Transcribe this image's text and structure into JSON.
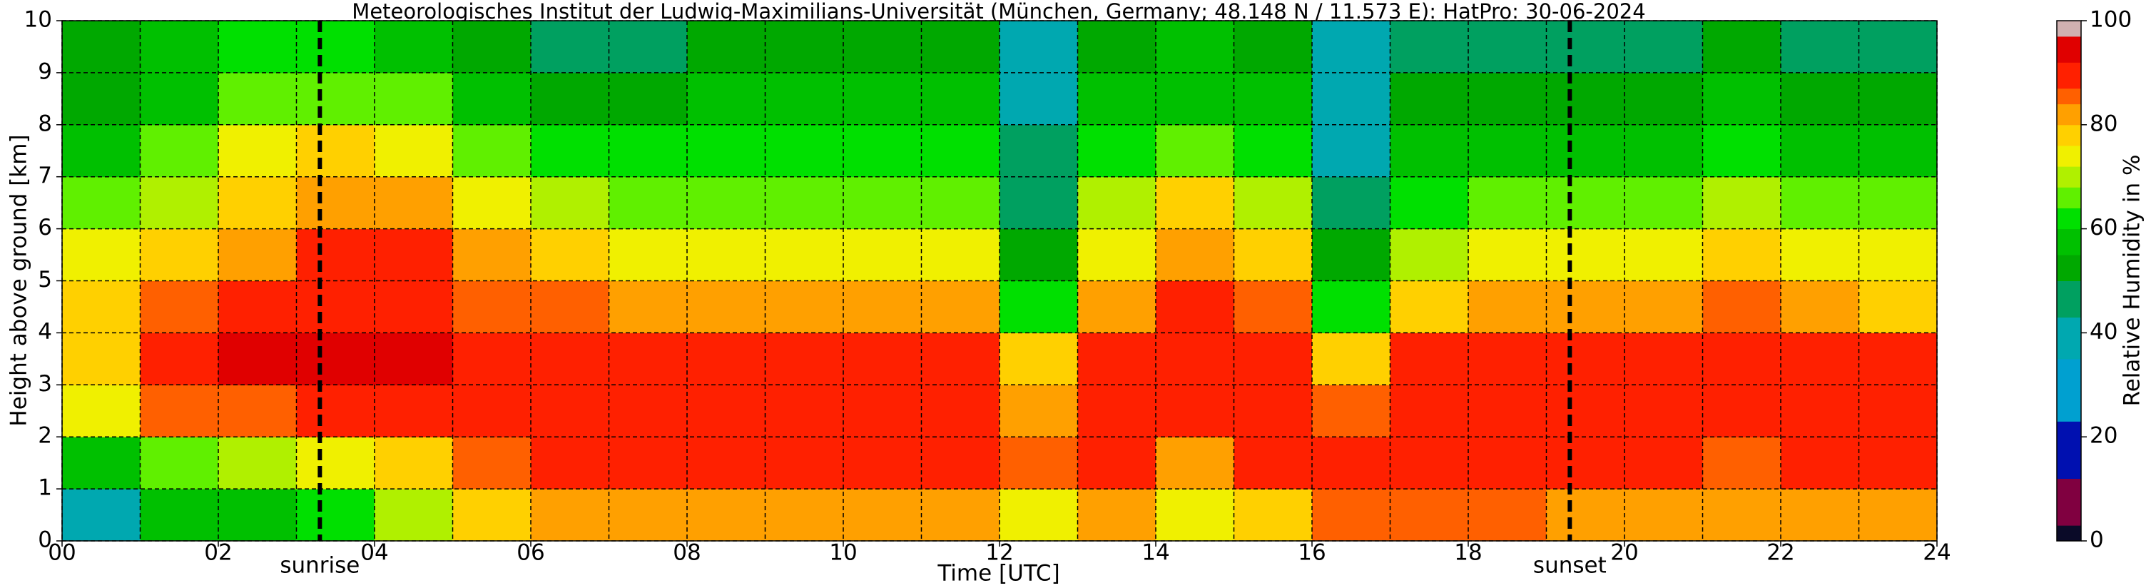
{
  "chart_data": {
    "type": "heatmap",
    "title": "Meteorologisches Institut der Ludwig-Maximilians-Universität (München, Germany; 48.148 N / 11.573 E):    HatPro: 30-06-2024",
    "xlabel": "Time [UTC]",
    "ylabel": "Height above ground [km]",
    "xlim": [
      0,
      24
    ],
    "ylim": [
      0,
      10
    ],
    "xticks": [
      {
        "value": 0,
        "label": "00"
      },
      {
        "value": 2,
        "label": "02"
      },
      {
        "value": 4,
        "label": "04"
      },
      {
        "value": 6,
        "label": "06"
      },
      {
        "value": 8,
        "label": "08"
      },
      {
        "value": 10,
        "label": "10"
      },
      {
        "value": 12,
        "label": "12"
      },
      {
        "value": 14,
        "label": "14"
      },
      {
        "value": 16,
        "label": "16"
      },
      {
        "value": 18,
        "label": "18"
      },
      {
        "value": 20,
        "label": "20"
      },
      {
        "value": 22,
        "label": "22"
      },
      {
        "value": 24,
        "label": "24"
      }
    ],
    "xminor_ticks": [
      1,
      3,
      5,
      7,
      9,
      11,
      13,
      15,
      17,
      19,
      21,
      23
    ],
    "yticks": [
      0,
      1,
      2,
      3,
      4,
      5,
      6,
      7,
      8,
      9,
      10
    ],
    "grid": true,
    "x_bins": [
      0,
      1,
      2,
      3,
      4,
      5,
      6,
      7,
      8,
      9,
      10,
      11,
      12,
      13,
      14,
      15,
      16,
      17,
      18,
      19,
      20,
      21,
      22,
      23,
      24
    ],
    "y_bins": [
      0,
      1,
      2,
      3,
      4,
      5,
      6,
      7,
      8,
      9,
      10
    ],
    "z": [
      [
        40,
        55,
        58,
        62,
        68,
        76,
        80,
        80,
        82,
        82,
        82,
        83,
        75,
        82,
        72,
        76,
        85,
        85,
        84,
        80,
        82,
        80,
        80,
        80
      ],
      [
        55,
        65,
        68,
        74,
        78,
        86,
        89,
        90,
        90,
        90,
        90,
        90,
        84,
        90,
        82,
        88,
        88,
        91,
        90,
        90,
        90,
        86,
        90,
        90
      ],
      [
        72,
        85,
        86,
        88,
        88,
        90,
        91,
        91,
        91,
        91,
        91,
        91,
        82,
        91,
        90,
        91,
        84,
        91,
        91,
        91,
        91,
        90,
        91,
        91
      ],
      [
        78,
        88,
        92,
        93,
        92,
        91,
        90,
        90,
        89,
        89,
        88,
        88,
        76,
        89,
        91,
        90,
        78,
        88,
        89,
        89,
        89,
        90,
        89,
        88
      ],
      [
        77,
        85,
        88,
        90,
        90,
        86,
        84,
        82,
        80,
        80,
        80,
        80,
        62,
        82,
        88,
        84,
        62,
        78,
        80,
        80,
        80,
        86,
        80,
        79
      ],
      [
        74,
        78,
        83,
        88,
        88,
        80,
        76,
        74,
        72,
        73,
        73,
        74,
        50,
        75,
        82,
        78,
        52,
        70,
        72,
        72,
        73,
        78,
        72,
        72
      ],
      [
        66,
        70,
        77,
        80,
        80,
        72,
        68,
        66,
        65,
        66,
        66,
        67,
        45,
        68,
        76,
        70,
        46,
        62,
        64,
        64,
        65,
        70,
        64,
        64
      ],
      [
        58,
        64,
        72,
        76,
        74,
        66,
        62,
        60,
        60,
        60,
        60,
        61,
        44,
        62,
        66,
        63,
        42,
        56,
        58,
        58,
        58,
        62,
        58,
        58
      ],
      [
        52,
        58,
        64,
        66,
        64,
        56,
        54,
        54,
        55,
        55,
        56,
        56,
        42,
        56,
        58,
        57,
        38,
        50,
        52,
        52,
        52,
        56,
        52,
        52
      ],
      [
        50,
        55,
        60,
        62,
        58,
        50,
        45,
        48,
        50,
        50,
        52,
        52,
        40,
        52,
        55,
        52,
        35,
        45,
        48,
        48,
        48,
        52,
        48,
        48
      ]
    ],
    "annotations": [
      {
        "text": "sunrise",
        "x": 3.3
      },
      {
        "text": "sunset",
        "x": 19.3
      }
    ],
    "colorbar": {
      "label": "Relative Humidity in %",
      "lim": [
        0,
        100
      ],
      "ticks": [
        0,
        20,
        40,
        60,
        80,
        100
      ],
      "bounds": [
        0,
        3,
        12,
        23,
        35,
        43,
        50,
        55,
        60,
        64,
        68,
        72,
        76,
        80,
        84,
        87,
        92,
        97,
        100
      ],
      "colors": [
        "#0a0a28",
        "#800040",
        "#0010b0",
        "#00a0d0",
        "#00a8b0",
        "#00a060",
        "#00a800",
        "#00c000",
        "#00e000",
        "#60f000",
        "#b0f000",
        "#f0f000",
        "#ffd000",
        "#ffa000",
        "#ff6000",
        "#ff2000",
        "#e00000",
        "#d0b0b0"
      ]
    }
  }
}
